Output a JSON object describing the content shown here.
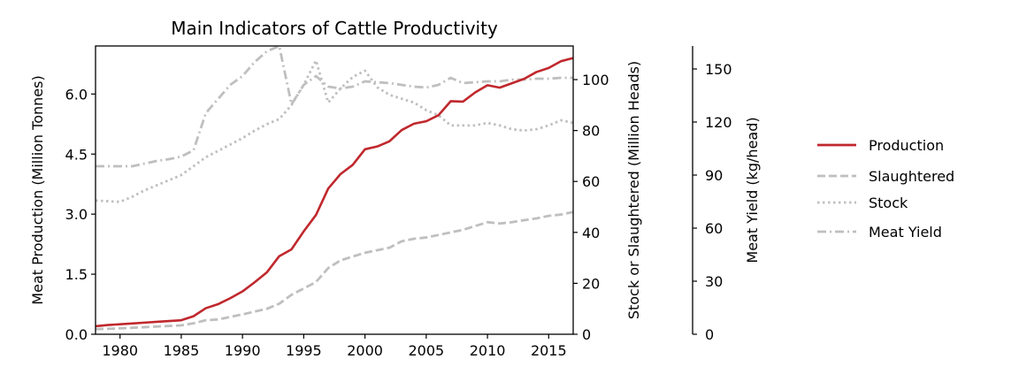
{
  "chart_data": {
    "type": "line",
    "title": "Main Indicators of Cattle Productivity",
    "xlabel": "",
    "xlim": [
      1978,
      2017
    ],
    "x_ticks": [
      1980,
      1985,
      1990,
      1995,
      2000,
      2005,
      2010,
      2015
    ],
    "axes": {
      "left": {
        "label": "Meat Production (Million Tonnes)",
        "ylim": [
          0,
          7.2
        ],
        "ticks": [
          0,
          1.5,
          3.0,
          4.5,
          6.0
        ],
        "tick_labels": [
          "0.0",
          "1.5",
          "3.0",
          "4.5",
          "6.0"
        ]
      },
      "right1": {
        "label": "Stock or Slaughtered (Million Heads)",
        "ylim": [
          0,
          113.2
        ],
        "ticks": [
          0,
          20,
          40,
          60,
          80,
          100
        ],
        "tick_labels": [
          "0",
          "20",
          "40",
          "60",
          "80",
          "100"
        ]
      },
      "right2": {
        "label": "Meat Yield (kg/head)",
        "ylim": [
          0,
          163
        ],
        "ticks": [
          0,
          30,
          60,
          90,
          120,
          150
        ],
        "tick_labels": [
          "0",
          "30",
          "60",
          "90",
          "120",
          "150"
        ]
      }
    },
    "series": [
      {
        "name": "Production",
        "axis": "left",
        "color": "#c0282d",
        "style": "solid",
        "x": [
          1978,
          1979,
          1980,
          1981,
          1982,
          1983,
          1984,
          1985,
          1986,
          1987,
          1988,
          1989,
          1990,
          1991,
          1992,
          1993,
          1994,
          1995,
          1996,
          1997,
          1998,
          1999,
          2000,
          2001,
          2002,
          2003,
          2004,
          2005,
          2006,
          2007,
          2008,
          2009,
          2010,
          2011,
          2012,
          2013,
          2014,
          2015,
          2016,
          2017
        ],
        "values": [
          0.2,
          0.23,
          0.25,
          0.27,
          0.29,
          0.31,
          0.33,
          0.35,
          0.45,
          0.65,
          0.75,
          0.9,
          1.07,
          1.3,
          1.55,
          1.95,
          2.12,
          2.57,
          2.98,
          3.64,
          4.0,
          4.23,
          4.62,
          4.69,
          4.82,
          5.1,
          5.26,
          5.32,
          5.47,
          5.82,
          5.81,
          6.04,
          6.22,
          6.16,
          6.27,
          6.38,
          6.55,
          6.65,
          6.82,
          6.9
        ]
      },
      {
        "name": "Slaughtered",
        "axis": "right1",
        "color": "#bfbfbf",
        "style": "dashed",
        "x": [
          1978,
          1980,
          1985,
          1986,
          1987,
          1988,
          1989,
          1990,
          1991,
          1992,
          1993,
          1994,
          1995,
          1996,
          1997,
          1998,
          1999,
          2000,
          2001,
          2002,
          2003,
          2004,
          2005,
          2006,
          2007,
          2008,
          2009,
          2010,
          2011,
          2012,
          2013,
          2014,
          2015,
          2016,
          2017
        ],
        "values": [
          2,
          2.3,
          3.5,
          4.3,
          5.5,
          5.8,
          6.8,
          7.8,
          8.9,
          10.0,
          12.0,
          15.5,
          18.0,
          20.5,
          26.0,
          29.0,
          30.5,
          32.0,
          33.0,
          34.0,
          36.5,
          37.5,
          38.0,
          39.0,
          40.0,
          41.0,
          42.5,
          44.0,
          43.5,
          44.0,
          44.8,
          45.5,
          46.5,
          47.0,
          48.0
        ]
      },
      {
        "name": "Stock",
        "axis": "right1",
        "color": "#bfbfbf",
        "style": "dotted",
        "x": [
          1978,
          1980,
          1981,
          1982,
          1983,
          1984,
          1985,
          1986,
          1987,
          1988,
          1989,
          1990,
          1991,
          1992,
          1993,
          1994,
          1995,
          1996,
          1997,
          1998,
          1999,
          2000,
          2001,
          2002,
          2003,
          2004,
          2005,
          2006,
          2007,
          2008,
          2009,
          2010,
          2011,
          2012,
          2013,
          2014,
          2015,
          2016,
          2017
        ],
        "values": [
          52.5,
          52.0,
          54.0,
          56.5,
          58.5,
          60.5,
          62.5,
          66.0,
          69.5,
          72.0,
          74.5,
          77.0,
          80.0,
          82.5,
          84.5,
          90.0,
          98.0,
          107.5,
          91.0,
          96.5,
          101.0,
          103.5,
          97.0,
          94.0,
          92.5,
          91.0,
          88.0,
          86.0,
          82.0,
          82.0,
          82.0,
          83.0,
          82.0,
          80.5,
          80.0,
          80.5,
          82.0,
          84.0,
          83.0
        ]
      },
      {
        "name": "Meat Yield",
        "axis": "right2",
        "color": "#bfbfbf",
        "style": "dashdot",
        "x": [
          1978,
          1980,
          1981,
          1982,
          1983,
          1984,
          1985,
          1986,
          1987,
          1988,
          1989,
          1990,
          1991,
          1992,
          1993,
          1994,
          1995,
          1996,
          1997,
          1998,
          1999,
          2000,
          2001,
          2002,
          2003,
          2004,
          2005,
          2006,
          2007,
          2008,
          2009,
          2010,
          2011,
          2012,
          2013,
          2014,
          2015,
          2016,
          2017
        ],
        "values": [
          95,
          95,
          95,
          96.5,
          98,
          99,
          100.5,
          104,
          125,
          133,
          141,
          146,
          154,
          160,
          163,
          130,
          141,
          146,
          140,
          139,
          140,
          143,
          142.5,
          142,
          141,
          140,
          139.5,
          141,
          145,
          142,
          142.5,
          143,
          143,
          144,
          144,
          144.5,
          144.5,
          145,
          145
        ]
      }
    ],
    "legend": {
      "placement": "right",
      "entries": [
        "Production",
        "Slaughtered",
        "Stock",
        "Meat Yield"
      ]
    }
  }
}
